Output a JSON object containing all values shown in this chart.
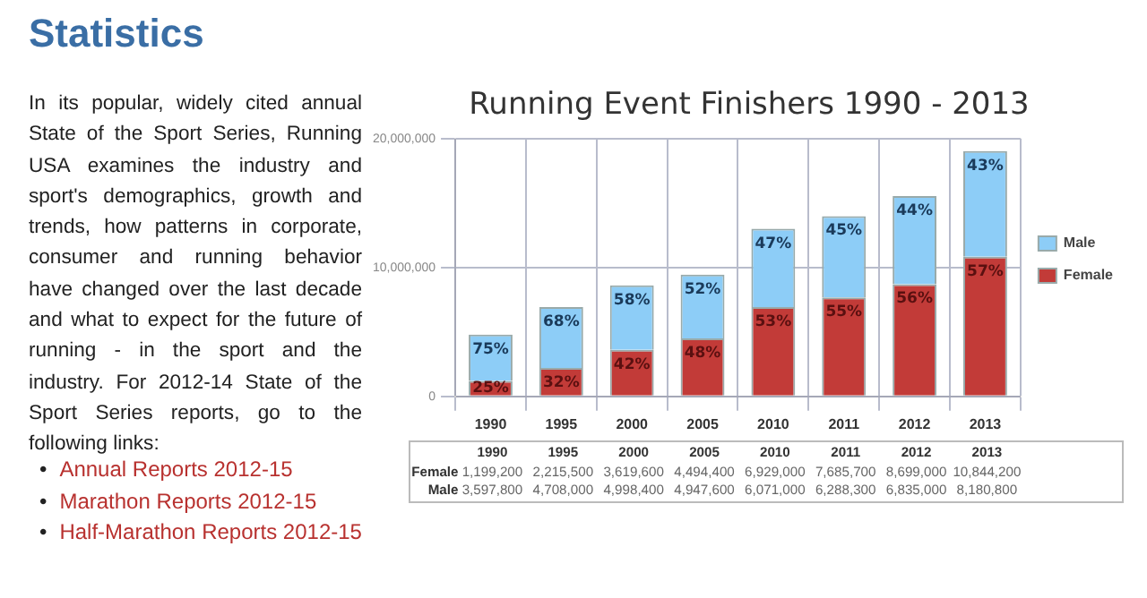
{
  "chart_data": {
    "type": "bar",
    "title": "Running Event Finishers 1990 - 2013",
    "annotations": [
      "Statistics",
      "In its popular, widely cited annual State of the Sport Series, Running USA examines the industry and sport's demographics, growth and trends, how patterns in corporate, consumer and running behavior have changed over the last decade and what to expect for the future of running - in the sport and the industry. For 2012-14 State of the Sport Series reports, go to the following links:",
      "• Annual Reports 2012-15",
      "• Marathon Reports 2012-15",
      "• Half-Marathon Reports 2012-15",
      {
        "text": "25%",
        "x": "1990",
        "y": 1199200
      },
      {
        "text": "32%",
        "x": "1995",
        "y": 2215500
      },
      {
        "text": "42%",
        "x": "2000",
        "y": 3619600
      },
      {
        "text": "48%",
        "x": "2005",
        "y": 4494400
      },
      {
        "text": "53%",
        "x": "2010",
        "y": 6929000
      },
      {
        "text": "55%",
        "x": "2011",
        "y": 7685700
      },
      {
        "text": "56%",
        "x": "2012",
        "y": 8699000
      },
      {
        "text": "57%",
        "x": "2013",
        "y": 10844200
      },
      {
        "text": "75%",
        "x": "1990",
        "y": 4797000
      },
      {
        "text": "68%",
        "x": "1995",
        "y": 6923500
      },
      {
        "text": "58%",
        "x": "2000",
        "y": 8618000
      },
      {
        "text": "52%",
        "x": "2005",
        "y": 9442000
      },
      {
        "text": "47%",
        "x": "2010",
        "y": 13000000
      },
      {
        "text": "45%",
        "x": "2011",
        "y": 13974000
      },
      {
        "text": "44%",
        "x": "2012",
        "y": 15534000
      },
      {
        "text": "43%",
        "x": "2013",
        "y": 19025000
      }
    ],
    "categories": [
      "1990",
      "1995",
      "2000",
      "2005",
      "2010",
      "2011",
      "2012",
      "2013"
    ],
    "series": [
      {
        "name": "Female",
        "color": "#c23b38",
        "values": [
          1199200,
          2215500,
          3619600,
          4494400,
          6929000,
          7685700,
          8699000,
          10844200
        ],
        "value_labels": [
          "1,199,200",
          "2,215,500",
          "3,619,600",
          "4,494,400",
          "6,929,000",
          "7,685,700",
          "8,699,000",
          "10,844,200"
        ]
      },
      {
        "name": "Male",
        "color": "#8dcdf7",
        "values": [
          3597800,
          4708000,
          4998400,
          4947600,
          6071000,
          6288300,
          6835000,
          8180800
        ],
        "value_labels": [
          "3,597,800",
          "4,708,000",
          "4,998,400",
          "4,947,600",
          "6,071,000",
          "6,288,300",
          "6,835,000",
          "8,180,800"
        ]
      }
    ],
    "stacked": true,
    "ylim": [
      0,
      20000000
    ],
    "yticks": [
      0,
      {
        "value": 10000000,
        "label": "10,000,000"
      },
      {
        "value": 20000000,
        "label": "20,000,000"
      }
    ],
    "grid": true,
    "legend": "right",
    "data_labels": true
  }
}
